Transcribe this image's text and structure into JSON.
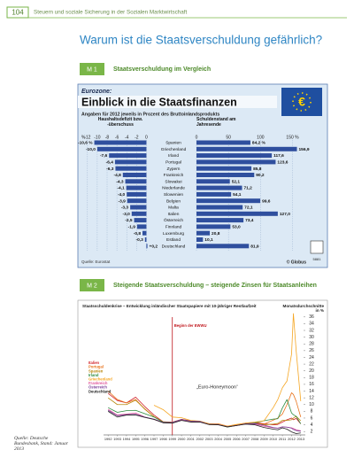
{
  "header": {
    "page_number": "104",
    "running_title": "Steuern und soziale Sicherung in der Sozialen Marktwirtschaft"
  },
  "title": "Warum ist die Staatsverschuldung gefährlich?",
  "sections": [
    {
      "tag": "M 1",
      "heading": "Staatsverschuldung im Vergleich"
    },
    {
      "tag": "M 2",
      "heading": "Steigende Staatsverschuldung – steigende Zinsen für Staatsanleihen"
    }
  ],
  "side_note": "Quelle: Deutsche Bundesbank, Stand: Januar 2013",
  "chart_data": [
    {
      "type": "butterfly_bar",
      "kicker": "Eurozone:",
      "title": "Einblick in die Staatsfinanzen",
      "subtitle": "Angaben für 2012 jeweils in Prozent des Bruttoinlandsprodukts",
      "categories": [
        "Spanien",
        "Griechenland",
        "Irland",
        "Portugal",
        "Zypern",
        "Frankreich",
        "Slowakei",
        "Niederlande",
        "Slowenien",
        "Belgien",
        "Malta",
        "Italien",
        "Österreich",
        "Finnland",
        "Luxemburg",
        "Estland",
        "Deutschland"
      ],
      "series": [
        {
          "name": "Haushaltsdefizit bzw. -überschuss",
          "color": "#2f4f9e",
          "unit": "%",
          "values": [
            -10.6,
            -10.0,
            -7.6,
            -6.4,
            -6.3,
            -4.8,
            -4.3,
            -4.1,
            -4.0,
            -3.9,
            -3.3,
            -3.0,
            -2.5,
            -1.9,
            -0.8,
            -0.3,
            0.2
          ],
          "value_labels": [
            "-10,6 %",
            "-10,0",
            "-7,6",
            "-6,4",
            "-6,3",
            "-4,8",
            "-4,3",
            "-4,1",
            "-4,0",
            "-3,9",
            "-3,3",
            "-3,0",
            "-2,5",
            "-1,9",
            "-0,8",
            "-0,3",
            "+0,2"
          ],
          "xlim": [
            -12.5,
            1.0
          ],
          "xticks": [
            -12,
            -10,
            -8,
            -6,
            -4,
            -2,
            0
          ]
        },
        {
          "name": "Schuldenstand am Jahresende",
          "color": "#2f4f9e",
          "values": [
            84.2,
            156.9,
            117.6,
            123.6,
            85.8,
            90.2,
            52.1,
            71.2,
            54.1,
            99.6,
            72.1,
            127.0,
            73.4,
            53.0,
            20.8,
            10.1,
            81.9
          ],
          "value_labels": [
            "84,2 %",
            "156,9",
            "117,6",
            "123,6",
            "85,8",
            "90,2",
            "52,1",
            "71,2",
            "54,1",
            "99,6",
            "72,1",
            "127,0",
            "73,4",
            "53,0",
            "20,8",
            "10,1",
            "81,9"
          ],
          "xlim": [
            0,
            170
          ],
          "xticks": [
            0,
            50,
            100,
            {
              "value": 150,
              "label": "150 %"
            }
          ]
        }
      ],
      "grid": true,
      "source": "Quelle: Eurostat",
      "credit": "© Globus",
      "graphic_id": "5881"
    },
    {
      "type": "line",
      "title": "Staatsschuldenkrise – Entwicklung inländischer Staatspapiere mit 10-jähriger Restlaufzeit",
      "y_label": "Monatsdurchschnitte in %",
      "x": [
        1992,
        1993,
        1994,
        1995,
        1996,
        1997,
        1998,
        1999,
        2000,
        2001,
        2002,
        2003,
        2004,
        2005,
        2006,
        2007,
        2008,
        2009,
        2010,
        2010.5,
        2011,
        2011.5,
        2012,
        2012.2,
        2012.5,
        2013
      ],
      "xlim": [
        1991.5,
        2013.5
      ],
      "xticks": [
        1992,
        1993,
        1994,
        1995,
        1996,
        1997,
        1998,
        1999,
        2000,
        2001,
        2002,
        2003,
        2004,
        2005,
        2006,
        2007,
        2008,
        2009,
        2010,
        2011,
        2012,
        2013
      ],
      "ylim": [
        1,
        37
      ],
      "yticks": [
        2,
        4,
        6,
        8,
        10,
        12,
        14,
        16,
        18,
        20,
        22,
        24,
        26,
        28,
        30,
        32,
        34,
        36
      ],
      "series": [
        {
          "name": "Italien",
          "color": "#d2232a",
          "values": [
            13.3,
            11.2,
            10.5,
            12.2,
            9.4,
            6.9,
            4.9,
            4.7,
            5.6,
            5.2,
            5.0,
            4.3,
            4.3,
            3.6,
            4.0,
            4.5,
            4.7,
            4.3,
            4.0,
            4.1,
            4.8,
            5.5,
            6.0,
            5.5,
            5.9,
            4.3
          ]
        },
        {
          "name": "Portugal",
          "color": "#e8731c",
          "values": [
            14,
            11.5,
            10.5,
            11.5,
            8.6,
            6.4,
            4.9,
            4.8,
            5.6,
            5.2,
            5.0,
            4.2,
            4.1,
            3.4,
            3.9,
            4.4,
            4.5,
            4.2,
            5.4,
            6.0,
            7.2,
            10,
            13.5,
            13,
            11,
            6.3
          ]
        },
        {
          "name": "Spanien",
          "color": "#b8860b",
          "values": [
            12,
            10,
            10,
            11.3,
            8.7,
            6.4,
            4.8,
            4.7,
            5.5,
            5.1,
            5.0,
            4.1,
            4.1,
            3.4,
            3.8,
            4.3,
            4.4,
            4.0,
            4.2,
            4.4,
            5.3,
            5.3,
            5.5,
            6.0,
            6.5,
            5.2
          ]
        },
        {
          "name": "Irland",
          "color": "#2b8a3e",
          "values": [
            9.1,
            7.7,
            8.2,
            8.3,
            7.3,
            6.3,
            4.8,
            4.7,
            5.5,
            5.0,
            5.0,
            4.1,
            4.1,
            3.3,
            3.8,
            4.3,
            4.6,
            5.2,
            5.7,
            5.8,
            9.0,
            11.5,
            7.5,
            7.0,
            6.5,
            4.3
          ]
        },
        {
          "name": "Griechenland",
          "color": "#f5a623",
          "values": [
            null,
            null,
            null,
            null,
            null,
            9.8,
            8.5,
            6.3,
            6.1,
            5.3,
            5.1,
            4.3,
            4.3,
            3.6,
            4.1,
            4.5,
            4.8,
            5.2,
            9.1,
            11.5,
            15,
            17,
            25,
            37,
            26,
            11
          ]
        },
        {
          "name": "Frankreich",
          "color": "#e0579b",
          "values": [
            8.6,
            6.9,
            7.2,
            7.5,
            6.3,
            5.6,
            4.6,
            4.6,
            5.4,
            4.9,
            4.9,
            4.1,
            4.1,
            3.4,
            3.8,
            4.3,
            4.2,
            3.6,
            3.1,
            3.0,
            3.4,
            3.3,
            3.1,
            2.9,
            2.5,
            2.2
          ]
        },
        {
          "name": "Österreich",
          "color": "#7b3f98",
          "values": [
            8.3,
            6.7,
            7.0,
            7.1,
            6.3,
            5.7,
            4.7,
            4.7,
            5.6,
            5.1,
            5.0,
            4.1,
            4.1,
            3.4,
            3.8,
            4.3,
            4.4,
            3.9,
            3.2,
            3.0,
            3.4,
            3.3,
            3.0,
            2.6,
            2.3,
            2.1
          ]
        },
        {
          "name": "Deutschland",
          "color": "#222222",
          "values": [
            8.0,
            6.3,
            6.9,
            6.9,
            6.2,
            5.6,
            4.6,
            4.5,
            5.3,
            4.8,
            4.8,
            4.1,
            4.0,
            3.4,
            3.8,
            4.2,
            4.0,
            3.2,
            2.7,
            2.5,
            3.1,
            2.7,
            1.9,
            1.7,
            1.4,
            1.6
          ]
        }
      ],
      "annotations": [
        {
          "text": "Beginn der EWWU",
          "x": 1999,
          "color": "#c0161c"
        },
        {
          "text": "„Euro-Honeymoon“"
        }
      ]
    }
  ]
}
